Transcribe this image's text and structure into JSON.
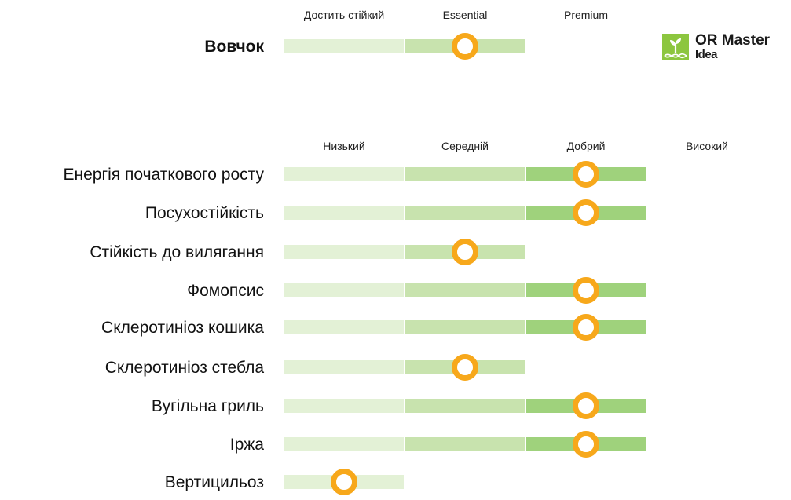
{
  "colors": {
    "seg1": "#e3f1d6",
    "seg2": "#c8e3ae",
    "seg3": "#9fd27c",
    "marker": "#f7a81b",
    "marker_fill": "#ffffff",
    "logo_green": "#8cc63f"
  },
  "logo": {
    "icon": "sprout-dna-icon",
    "line1": "OR Master",
    "line2": "Idea"
  },
  "chart_data": [
    {
      "type": "table",
      "columns": [
        "Достить стійкий",
        "Essential",
        "Premium"
      ],
      "rows": [
        {
          "label": "Вовчок",
          "segments": 2,
          "value": 1.5
        }
      ]
    },
    {
      "type": "table",
      "columns": [
        "Низький",
        "Середній",
        "Добрий",
        "Високий"
      ],
      "rows": [
        {
          "label": "Енергія початкового росту",
          "segments": 3,
          "value": 2.5
        },
        {
          "label": "Посухостійкість",
          "segments": 3,
          "value": 2.5
        },
        {
          "label": "Стійкість до вилягання",
          "segments": 2,
          "value": 1.5
        },
        {
          "label": "Фомопсис",
          "segments": 3,
          "value": 2.5
        },
        {
          "label": "Склеротиніоз кошика",
          "segments": 3,
          "value": 2.5
        },
        {
          "label": "Склеротиніоз стебла",
          "segments": 2,
          "value": 1.5
        },
        {
          "label": "Вугільна гриль",
          "segments": 3,
          "value": 2.5
        },
        {
          "label": "Іржа",
          "segments": 3,
          "value": 2.5
        },
        {
          "label": "Вертицильоз",
          "segments": 1,
          "value": 0.5
        }
      ]
    }
  ]
}
